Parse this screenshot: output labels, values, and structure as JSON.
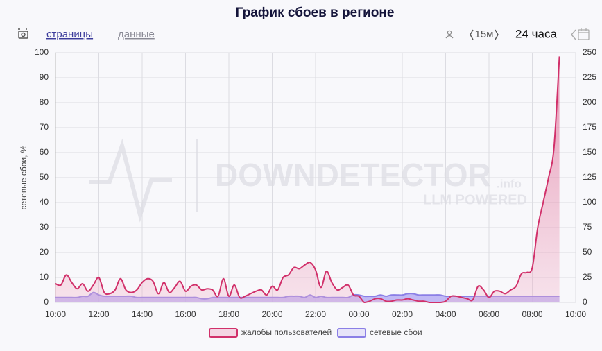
{
  "toolbar": {
    "links": [
      "страницы",
      "данные"
    ],
    "interval": "15м",
    "range": "24 часа"
  },
  "watermark": {
    "brand": "DOWNDETECTOR",
    "suffix": ".info",
    "tagline": "LLM POWERED"
  },
  "chart_data": {
    "type": "area",
    "title": "График сбоев в регионе",
    "y_label": "сетевые сбои, %",
    "legend": "bottom",
    "grid": true,
    "xlim": [
      10,
      34
    ],
    "xticks": [
      {
        "value": 10,
        "label": "10:00"
      },
      {
        "value": 12,
        "label": "12:00"
      },
      {
        "value": 14,
        "label": "14:00"
      },
      {
        "value": 16,
        "label": "16:00"
      },
      {
        "value": 18,
        "label": "18:00"
      },
      {
        "value": 20,
        "label": "20:00"
      },
      {
        "value": 22,
        "label": "22:00"
      },
      {
        "value": 24,
        "label": "00:00"
      },
      {
        "value": 26,
        "label": "02:00"
      },
      {
        "value": 28,
        "label": "04:00"
      },
      {
        "value": 30,
        "label": "06:00"
      },
      {
        "value": 32,
        "label": "08:00"
      },
      {
        "value": 34,
        "label": "10:00"
      }
    ],
    "ylim": [
      0,
      100
    ],
    "yticks": [
      0,
      10,
      20,
      30,
      40,
      50,
      60,
      70,
      80,
      90,
      100
    ],
    "y2lim": [
      0,
      250
    ],
    "y2ticks": [
      0,
      25,
      50,
      75,
      100,
      125,
      150,
      175,
      200,
      225,
      250
    ],
    "x": [
      10,
      10.25,
      10.5,
      10.75,
      11,
      11.25,
      11.5,
      11.75,
      12,
      12.25,
      12.5,
      12.75,
      13,
      13.25,
      13.5,
      13.75,
      14,
      14.25,
      14.5,
      14.75,
      15,
      15.25,
      15.5,
      15.75,
      16,
      16.25,
      16.5,
      16.75,
      17,
      17.25,
      17.5,
      17.75,
      18,
      18.25,
      18.5,
      18.75,
      19,
      19.25,
      19.5,
      19.75,
      20,
      20.25,
      20.5,
      20.75,
      21,
      21.25,
      21.5,
      21.75,
      22,
      22.25,
      22.5,
      22.75,
      23,
      23.25,
      23.5,
      23.75,
      24,
      24.25,
      24.5,
      24.75,
      25,
      25.25,
      25.5,
      25.75,
      26,
      26.25,
      26.5,
      26.75,
      27,
      27.25,
      27.5,
      27.75,
      28,
      28.25,
      28.5,
      28.75,
      29,
      29.25,
      29.5,
      29.75,
      30,
      30.25,
      30.5,
      30.75,
      31,
      31.25,
      31.5,
      31.75,
      32,
      32.25,
      32.5,
      32.75,
      33,
      33.25
    ],
    "series": [
      {
        "name": "сетевые сбои",
        "color": "#8b7fe6",
        "fill": "#b3a9f4",
        "values": [
          2,
          2,
          2,
          2,
          2,
          2.5,
          2.5,
          4,
          3,
          2.5,
          2.5,
          2.5,
          2.5,
          2.5,
          2.5,
          2,
          2,
          2,
          2,
          2,
          2,
          2,
          2,
          2,
          2,
          2,
          2,
          1.5,
          1.5,
          2,
          2,
          2,
          2,
          2,
          2,
          2,
          2,
          2,
          2,
          2,
          2,
          2,
          2,
          2.5,
          2.5,
          2.5,
          2,
          3,
          2,
          2.5,
          2,
          2,
          2,
          2,
          2,
          3,
          3,
          2.5,
          2.5,
          2.5,
          3,
          2.5,
          3,
          3,
          3,
          3.5,
          3.5,
          3,
          3,
          3,
          3,
          3,
          2.5,
          2.5,
          2.5,
          2.5,
          2.5,
          2.5,
          2.5,
          2.5,
          2.5,
          2.5,
          2.5,
          2.5,
          2.5,
          2.5,
          2.5,
          2.5,
          2.5,
          2.5,
          2.5,
          2.5,
          2.5,
          2.5
        ]
      },
      {
        "name": "жалобы пользователей",
        "color": "#d1306a",
        "fill": "#e86a9a",
        "values": [
          7.5,
          7,
          11,
          8,
          5.5,
          7.5,
          4.5,
          7,
          10,
          4,
          3.5,
          5,
          9.5,
          5,
          4,
          5,
          8,
          9.5,
          8.5,
          3.5,
          8,
          4,
          6,
          8.5,
          4.5,
          6.5,
          7,
          5,
          5.5,
          5,
          2.5,
          9.5,
          2.5,
          7,
          2,
          2.5,
          3.5,
          4.5,
          5,
          3,
          6.5,
          5,
          10,
          11,
          14,
          13.5,
          15,
          16,
          13,
          6,
          12.5,
          8,
          5,
          6,
          7,
          3,
          2.5,
          0,
          0.5,
          1.5,
          1.5,
          0.5,
          0.5,
          1,
          1,
          1.5,
          1,
          0.5,
          0.5,
          0,
          0,
          0,
          0.5,
          2.5,
          2.5,
          2,
          1.5,
          1,
          6.5,
          5,
          2,
          4.5,
          4.5,
          3.5,
          5,
          6.5,
          11.5,
          12,
          14,
          30,
          40,
          50,
          62,
          98.5
        ]
      }
    ]
  }
}
